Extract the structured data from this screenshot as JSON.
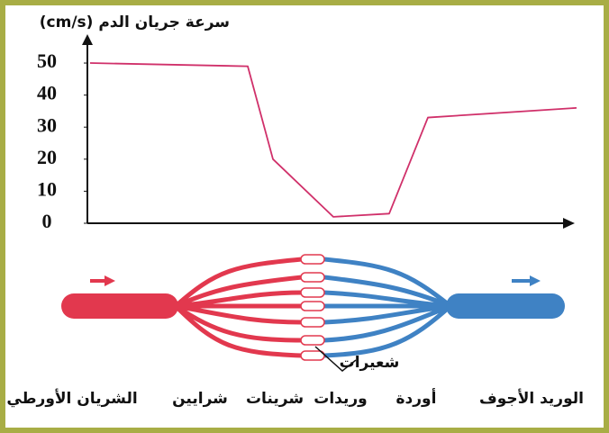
{
  "chart_data": {
    "type": "line",
    "y_label": "سرعة جريان الدم (cm/s)",
    "categories": [
      "الشريان الأورطي",
      "شرايين",
      "شرينات",
      "شعيرات",
      "وريدات",
      "أوردة",
      "الوريد الأجوف"
    ],
    "values": [
      50,
      49,
      20,
      2,
      3,
      33,
      36
    ],
    "color": "#d0306a",
    "ylim": [
      0,
      59
    ],
    "yticks": [
      0,
      10,
      20,
      30,
      40,
      50
    ]
  }
}
